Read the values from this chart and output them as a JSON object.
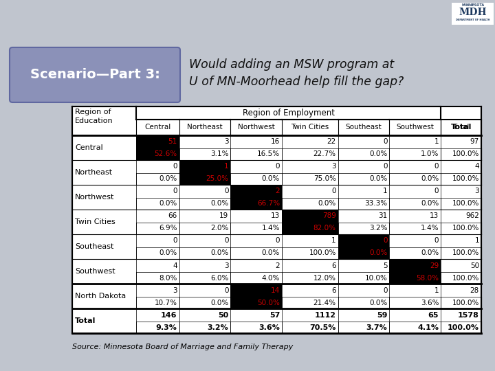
{
  "title_box": "Scenario—Part 3:",
  "subtitle": "Would adding an MSW program at\nU of MN-Moorhead help fill the gap?",
  "source": "Source: Minnesota Board of Marriage and Family Therapy",
  "col_headers": [
    "Central",
    "Northeast",
    "Northwest",
    "Twin Cities",
    "Southeast",
    "Southwest",
    "Total"
  ],
  "rows": [
    {
      "label": "Central",
      "values": [
        "51",
        "3",
        "16",
        "22",
        "0",
        "1",
        "97"
      ],
      "percents": [
        "52.6%",
        "3.1%",
        "16.5%",
        "22.7%",
        "0.0%",
        "1.0%",
        "100.0%"
      ],
      "highlight_val": [
        0
      ],
      "highlight_pct": [
        0
      ],
      "thick_top": true,
      "thick_bottom": false
    },
    {
      "label": "Northeast",
      "values": [
        "0",
        "1",
        "0",
        "3",
        "0",
        "0",
        "4"
      ],
      "percents": [
        "0.0%",
        "25.0%",
        "0.0%",
        "75.0%",
        "0.0%",
        "0.0%",
        "100.0%"
      ],
      "highlight_val": [
        1
      ],
      "highlight_pct": [
        1
      ],
      "thick_top": false,
      "thick_bottom": false
    },
    {
      "label": "Northwest",
      "values": [
        "0",
        "0",
        "2",
        "0",
        "1",
        "0",
        "3"
      ],
      "percents": [
        "0.0%",
        "0.0%",
        "66.7%",
        "0.0%",
        "33.3%",
        "0.0%",
        "100.0%"
      ],
      "highlight_val": [
        2
      ],
      "highlight_pct": [
        2
      ],
      "thick_top": false,
      "thick_bottom": false
    },
    {
      "label": "Twin Cities",
      "values": [
        "66",
        "19",
        "13",
        "789",
        "31",
        "13",
        "962"
      ],
      "percents": [
        "6.9%",
        "2.0%",
        "1.4%",
        "82.0%",
        "3.2%",
        "1.4%",
        "100.0%"
      ],
      "highlight_val": [
        3
      ],
      "highlight_pct": [
        3
      ],
      "thick_top": false,
      "thick_bottom": false
    },
    {
      "label": "Southeast",
      "values": [
        "0",
        "0",
        "0",
        "1",
        "0",
        "0",
        "1"
      ],
      "percents": [
        "0.0%",
        "0.0%",
        "0.0%",
        "100.0%",
        "0.0%",
        "0.0%",
        "100.0%"
      ],
      "highlight_val": [
        4
      ],
      "highlight_pct": [
        4
      ],
      "thick_top": false,
      "thick_bottom": false
    },
    {
      "label": "Southwest",
      "values": [
        "4",
        "3",
        "2",
        "6",
        "5",
        "29",
        "50"
      ],
      "percents": [
        "8.0%",
        "6.0%",
        "4.0%",
        "12.0%",
        "10.0%",
        "58.0%",
        "100.0%"
      ],
      "highlight_val": [
        5
      ],
      "highlight_pct": [
        5
      ],
      "thick_top": false,
      "thick_bottom": true
    },
    {
      "label": "North Dakota",
      "values": [
        "3",
        "0",
        "14",
        "6",
        "0",
        "1",
        "28"
      ],
      "percents": [
        "10.7%",
        "0.0%",
        "50.0%",
        "21.4%",
        "0.0%",
        "3.6%",
        "100.0%"
      ],
      "highlight_val": [
        2
      ],
      "highlight_pct": [
        2
      ],
      "thick_top": false,
      "thick_bottom": false
    },
    {
      "label": "Total",
      "values": [
        "146",
        "50",
        "57",
        "1112",
        "59",
        "65",
        "1578"
      ],
      "percents": [
        "9.3%",
        "3.2%",
        "3.6%",
        "70.5%",
        "3.7%",
        "4.1%",
        "100.0%"
      ],
      "highlight_val": [],
      "highlight_pct": [],
      "thick_top": true,
      "thick_bottom": true,
      "is_total": true
    }
  ],
  "cell_highlight_bg": "#000000",
  "cell_highlight_text": "#cc0000",
  "cell_normal_text": "#000000",
  "top_bar_color": "#1e3a5f",
  "col_employment_header": "Region of Employment",
  "bg_gradient_top": "#b0b8c8",
  "bg_gradient_bottom": "#d0d5dd"
}
